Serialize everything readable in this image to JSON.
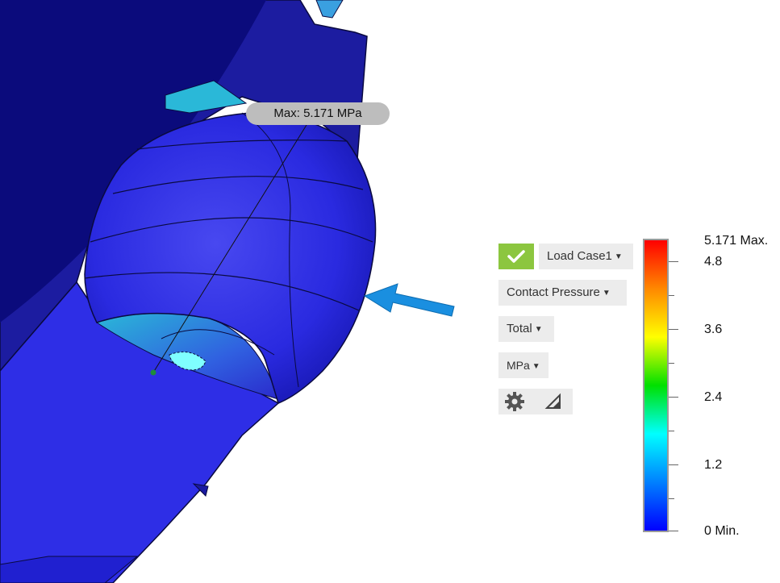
{
  "viewport": {
    "probe_label": "Max: 5.171 MPa"
  },
  "panel": {
    "check_icon": "check-icon",
    "load_case": "Load Case1",
    "result_type": "Contact Pressure",
    "component": "Total",
    "units": "MPa",
    "settings_icon": "gear-icon",
    "probe_tool_icon": "triangle-probe-icon"
  },
  "legend": {
    "max_label": "5.171 Max.",
    "ticks": [
      "4.8",
      "3.6",
      "2.4",
      "1.2"
    ],
    "min_label": "0 Min.",
    "colors": [
      "#ff0000",
      "#ff8800",
      "#ffff00",
      "#00e000",
      "#00ffff",
      "#0080ff",
      "#0000ff"
    ]
  }
}
